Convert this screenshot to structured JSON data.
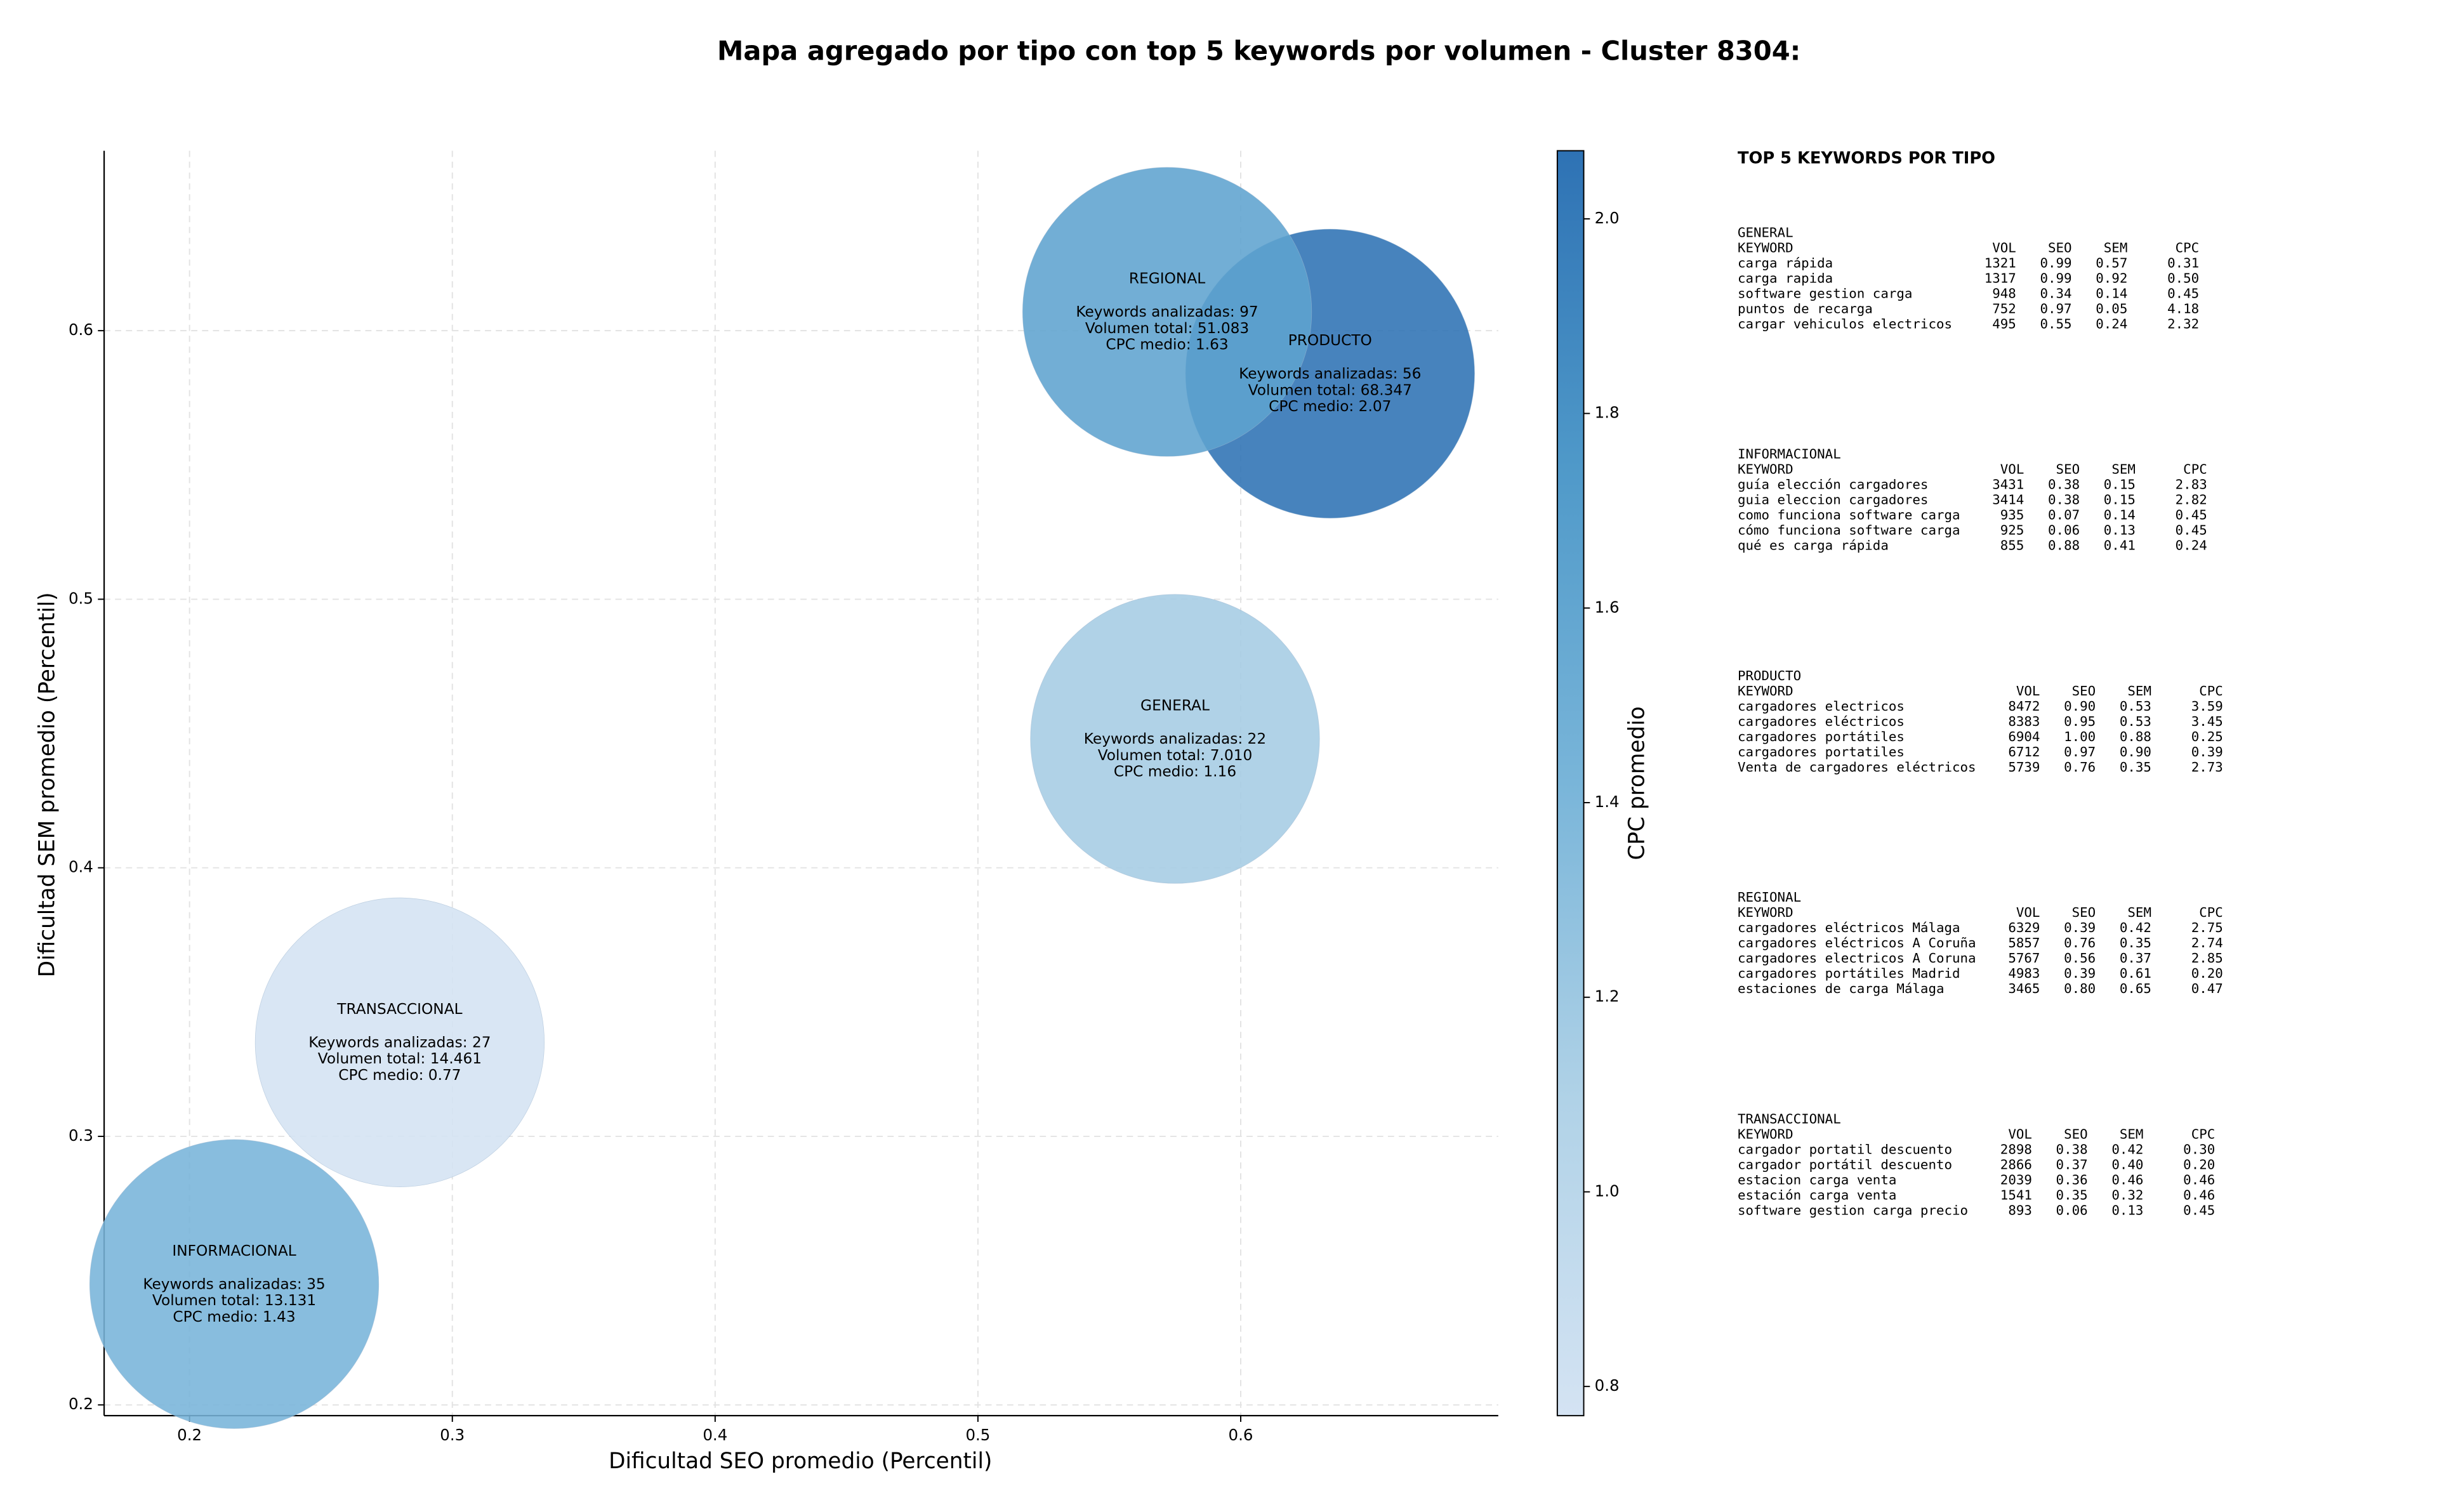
{
  "chart_data": {
    "type": "scatter",
    "title": "Mapa agregado por tipo con top 5 keywords por volumen - Cluster 8304:",
    "xlabel": "Dificultad SEO promedio (Percentil)",
    "ylabel": "Dificultad SEM promedio (Percentil)",
    "xlim": [
      0.1675,
      0.698
    ],
    "ylim": [
      0.196,
      0.667
    ],
    "xticks": [
      0.2,
      0.3,
      0.4,
      0.5,
      0.6
    ],
    "yticks": [
      0.2,
      0.3,
      0.4,
      0.5,
      0.6
    ],
    "grid": true,
    "labels": [
      "GENERAL",
      "INFORMACIONAL",
      "PRODUCTO",
      "REGIONAL",
      "TRANSACCIONAL"
    ],
    "x": [
      0.575,
      0.217,
      0.634,
      0.572,
      0.28
    ],
    "values": [
      0.448,
      0.245,
      0.584,
      0.607,
      0.335
    ],
    "cpc": [
      1.16,
      1.43,
      2.07,
      1.63,
      0.77
    ],
    "annotations": [
      [
        "Keywords analizadas: 22",
        "Volumen total: 7.010",
        "CPC medio: 1.16"
      ],
      [
        "Keywords analizadas: 35",
        "Volumen total: 13.131",
        "CPC medio: 1.43"
      ],
      [
        "Keywords analizadas: 56",
        "Volumen total: 68.347",
        "CPC medio: 2.07"
      ],
      [
        "Keywords analizadas: 97",
        "Volumen total: 51.083",
        "CPC medio: 1.63"
      ],
      [
        "Keywords analizadas: 27",
        "Volumen total: 14.461",
        "CPC medio: 0.77"
      ]
    ],
    "colorbar_label": "CPC promedio",
    "clim": [
      0.77,
      2.07
    ],
    "cticks": [
      0.8,
      {
        "value": 1,
        "label": "1.0"
      },
      1.2,
      1.4,
      1.6,
      1.8,
      {
        "value": 2,
        "label": "2.0"
      }
    ],
    "colormap": [
      "#d4e3f3",
      "#b0d2e7",
      "#79b5d9",
      "#4f99c9",
      "#2e72b4"
    ],
    "panel_title": "TOP 5 KEYWORDS POR TIPO",
    "columns": [
      "KEYWORD",
      "VOL",
      "SEO",
      "SEM",
      "CPC"
    ],
    "keyword_tables": [
      {
        "name": "GENERAL",
        "rows": [
          [
            "carga rápida",
            "1321",
            "0.99",
            "0.57",
            "0.31"
          ],
          [
            "carga rapida",
            "1317",
            "0.99",
            "0.92",
            "0.50"
          ],
          [
            "software gestion carga",
            "948",
            "0.34",
            "0.14",
            "0.45"
          ],
          [
            "puntos de recarga",
            "752",
            "0.97",
            "0.05",
            "4.18"
          ],
          [
            "cargar vehiculos electricos",
            "495",
            "0.55",
            "0.24",
            "2.32"
          ]
        ]
      },
      {
        "name": "INFORMACIONAL",
        "rows": [
          [
            "guía elección cargadores",
            "3431",
            "0.38",
            "0.15",
            "2.83"
          ],
          [
            "guia eleccion cargadores",
            "3414",
            "0.38",
            "0.15",
            "2.82"
          ],
          [
            "como funciona software carga",
            "935",
            "0.07",
            "0.14",
            "0.45"
          ],
          [
            "cómo funciona software carga",
            "925",
            "0.06",
            "0.13",
            "0.45"
          ],
          [
            "qué es carga rápida",
            "855",
            "0.88",
            "0.41",
            "0.24"
          ]
        ]
      },
      {
        "name": "PRODUCTO",
        "rows": [
          [
            "cargadores electricos",
            "8472",
            "0.90",
            "0.53",
            "3.59"
          ],
          [
            "cargadores eléctricos",
            "8383",
            "0.95",
            "0.53",
            "3.45"
          ],
          [
            "cargadores portátiles",
            "6904",
            "1.00",
            "0.88",
            "0.25"
          ],
          [
            "cargadores portatiles",
            "6712",
            "0.97",
            "0.90",
            "0.39"
          ],
          [
            "Venta de cargadores eléctricos",
            "5739",
            "0.76",
            "0.35",
            "2.73"
          ]
        ]
      },
      {
        "name": "REGIONAL",
        "rows": [
          [
            "cargadores eléctricos Málaga",
            "6329",
            "0.39",
            "0.42",
            "2.75"
          ],
          [
            "cargadores eléctricos A Coruña",
            "5857",
            "0.76",
            "0.35",
            "2.74"
          ],
          [
            "cargadores electricos A Coruna",
            "5767",
            "0.56",
            "0.37",
            "2.85"
          ],
          [
            "cargadores portátiles Madrid",
            "4983",
            "0.39",
            "0.61",
            "0.20"
          ],
          [
            "estaciones de carga Málaga",
            "3465",
            "0.80",
            "0.65",
            "0.47"
          ]
        ]
      },
      {
        "name": "TRANSACCIONAL",
        "rows": [
          [
            "cargador portatil descuento",
            "2898",
            "0.38",
            "0.42",
            "0.30"
          ],
          [
            "cargador portátil descuento",
            "2866",
            "0.37",
            "0.40",
            "0.20"
          ],
          [
            "estacion carga venta",
            "2039",
            "0.36",
            "0.46",
            "0.46"
          ],
          [
            "estación carga venta",
            "1541",
            "0.35",
            "0.32",
            "0.46"
          ],
          [
            "software gestion carga precio",
            "893",
            "0.06",
            "0.13",
            "0.45"
          ]
        ]
      }
    ]
  }
}
